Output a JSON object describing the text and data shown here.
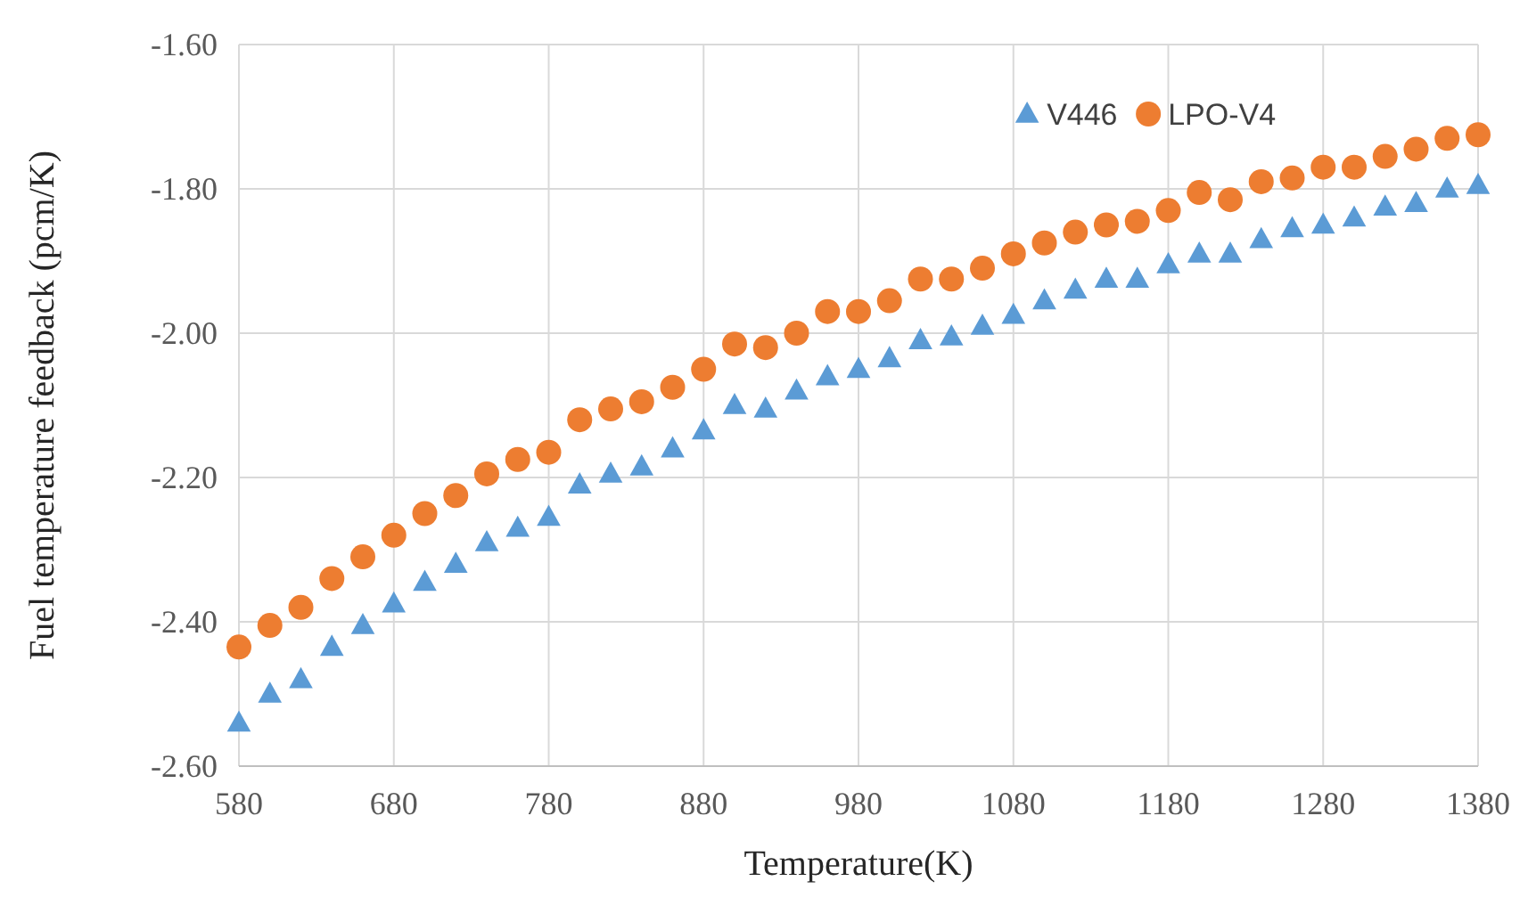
{
  "chart_data": {
    "type": "scatter",
    "xlabel": "Temperature(K)",
    "ylabel": "Fuel temperature feedback (pcm/K)",
    "x": [
      580,
      600,
      620,
      640,
      660,
      680,
      700,
      720,
      740,
      760,
      780,
      800,
      820,
      840,
      860,
      880,
      900,
      920,
      940,
      960,
      980,
      1000,
      1020,
      1040,
      1060,
      1080,
      1100,
      1120,
      1140,
      1160,
      1180,
      1200,
      1220,
      1240,
      1260,
      1280,
      1300,
      1320,
      1340,
      1360,
      1380
    ],
    "series": [
      {
        "name": "V446",
        "color": "#5b9bd5",
        "marker": "triangle",
        "values": [
          -2.54,
          -2.5,
          -2.48,
          -2.435,
          -2.405,
          -2.375,
          -2.345,
          -2.32,
          -2.29,
          -2.27,
          -2.255,
          -2.21,
          -2.195,
          -2.185,
          -2.16,
          -2.135,
          -2.1,
          -2.105,
          -2.08,
          -2.06,
          -2.05,
          -2.035,
          -2.01,
          -2.005,
          -1.99,
          -1.975,
          -1.955,
          -1.94,
          -1.925,
          -1.925,
          -1.905,
          -1.89,
          -1.89,
          -1.87,
          -1.855,
          -1.85,
          -1.84,
          -1.825,
          -1.82,
          -1.8,
          -1.795
        ]
      },
      {
        "name": "LPO-V4",
        "color": "#ed7d31",
        "marker": "circle",
        "values": [
          -2.435,
          -2.405,
          -2.38,
          -2.34,
          -2.31,
          -2.28,
          -2.25,
          -2.225,
          -2.195,
          -2.175,
          -2.165,
          -2.12,
          -2.105,
          -2.095,
          -2.075,
          -2.05,
          -2.015,
          -2.02,
          -2,
          -1.97,
          -1.97,
          -1.955,
          -1.925,
          -1.925,
          -1.91,
          -1.89,
          -1.875,
          -1.86,
          -1.85,
          -1.845,
          -1.83,
          -1.805,
          -1.815,
          -1.79,
          -1.785,
          -1.77,
          -1.77,
          -1.755,
          -1.745,
          -1.73,
          -1.725
        ]
      }
    ],
    "xlim": [
      580,
      1380
    ],
    "xticks": [
      580,
      680,
      780,
      880,
      980,
      1080,
      1180,
      1280,
      1380
    ],
    "ylim": [
      -2.6,
      -1.6
    ],
    "yticks": [
      {
        "value": -2.6,
        "label": "-2.60"
      },
      {
        "value": -2.4,
        "label": "-2.40"
      },
      {
        "value": -2.2,
        "label": "-2.20"
      },
      {
        "value": -2.0,
        "label": "-2.00"
      },
      {
        "value": -1.8,
        "label": "-1.80"
      },
      {
        "value": -1.6,
        "label": "-1.60"
      }
    ],
    "grid": true,
    "legend": "top right"
  }
}
